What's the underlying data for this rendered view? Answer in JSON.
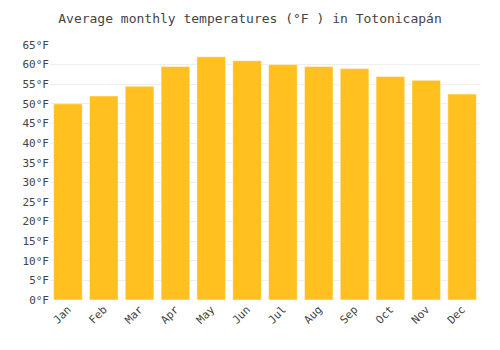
{
  "chart_data": {
    "type": "bar",
    "title": "Average monthly temperatures (°F ) in Totonicapán",
    "categories": [
      "Jan",
      "Feb",
      "Mar",
      "Apr",
      "May",
      "Jun",
      "Jul",
      "Aug",
      "Sep",
      "Oct",
      "Nov",
      "Dec"
    ],
    "values": [
      50.0,
      52.0,
      54.5,
      59.5,
      62.0,
      61.0,
      60.0,
      59.5,
      59.0,
      57.0,
      56.0,
      52.5
    ],
    "color": "#FFC020",
    "ylim": [
      0,
      65
    ],
    "yticks": [
      {
        "value": 0,
        "label": "0°F"
      },
      {
        "value": 5,
        "label": "5°F"
      },
      {
        "value": 10,
        "label": "10°F"
      },
      {
        "value": 15,
        "label": "15°F"
      },
      {
        "value": 20,
        "label": "20°F"
      },
      {
        "value": 25,
        "label": "25°F"
      },
      {
        "value": 30,
        "label": "30°F"
      },
      {
        "value": 35,
        "label": "35°F"
      },
      {
        "value": 40,
        "label": "40°F"
      },
      {
        "value": 45,
        "label": "45°F"
      },
      {
        "value": 50,
        "label": "50°F"
      },
      {
        "value": 55,
        "label": "55°F"
      },
      {
        "value": 60,
        "label": "60°F"
      },
      {
        "value": 65,
        "label": "65°F"
      }
    ],
    "grid": true
  }
}
